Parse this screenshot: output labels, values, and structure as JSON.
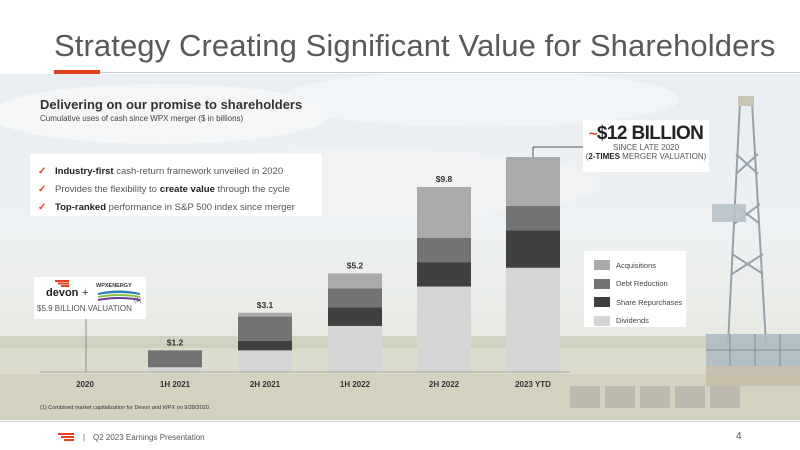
{
  "slide": {
    "title": "Strategy Creating Significant Value for Shareholders",
    "headline": "Delivering on our promise to shareholders",
    "subheadline": "Cumulative uses of cash since WPX merger ($ in billions)",
    "page_number": "4",
    "footer_text": "Q2 2023 Earnings Presentation",
    "footer_separator": "|",
    "footnote": "(1) Combined market capitalization for Devon and WPX on 9/28/2020."
  },
  "bullets": [
    {
      "bold_lead": "Industry-first",
      "rest": "cash-return framework unveiled in 2020"
    },
    {
      "pre": "Provides the flexibility to",
      "bold_mid": "create value",
      "post": "through the cycle"
    },
    {
      "bold_lead": "Top-ranked",
      "rest": "performance in S&P 500 index since merger"
    }
  ],
  "callout": {
    "tilde": "~",
    "amount": "$12 BILLION",
    "since": "SINCE LATE 2020",
    "open_paren": "(",
    "multiple": "2-TIMES",
    "multiple_rest": "MERGER VALUATION)"
  },
  "valuation": {
    "label": "$5.9 BILLION VALUATION",
    "footnote_marker": "(1)",
    "devon_logo": "devon",
    "plus": "+",
    "wpx_logo": "WPXENERGY"
  },
  "colors": {
    "accent": "#e6411f",
    "acquisitions": "#aaaaaa",
    "debt_reduction": "#737373",
    "share_repurchases": "#404040",
    "dividends": "#d5d5d5"
  },
  "chart_data": {
    "type": "bar",
    "stacked": true,
    "categories": [
      "2020",
      "1H 2021",
      "2H 2021",
      "1H 2022",
      "2H 2022",
      "2023 YTD"
    ],
    "series": [
      {
        "name": "Dividends",
        "color": "#d5d5d5",
        "values": [
          null,
          0.2,
          1.1,
          2.4,
          4.5,
          5.5
        ]
      },
      {
        "name": "Share Repurchases",
        "color": "#404040",
        "values": [
          null,
          0.0,
          0.5,
          1.0,
          1.3,
          2.0
        ]
      },
      {
        "name": "Debt Reduction",
        "color": "#737373",
        "values": [
          null,
          0.9,
          1.3,
          1.0,
          1.3,
          1.3
        ]
      },
      {
        "name": "Acquisitions",
        "color": "#aaaaaa",
        "values": [
          null,
          0.0,
          0.2,
          0.8,
          2.7,
          2.6
        ]
      }
    ],
    "totals": [
      null,
      1.2,
      3.1,
      5.2,
      9.8,
      11.4
    ],
    "data_labels": [
      "",
      "$1.2",
      "$3.1",
      "$5.2",
      "$9.8",
      ""
    ],
    "legend_order": [
      "Acquisitions",
      "Debt Reduction",
      "Share Repurchases",
      "Dividends"
    ],
    "legend_position": "right",
    "ylim": [
      0,
      12
    ],
    "grid": false,
    "title": "",
    "xlabel": "",
    "ylabel": ""
  }
}
